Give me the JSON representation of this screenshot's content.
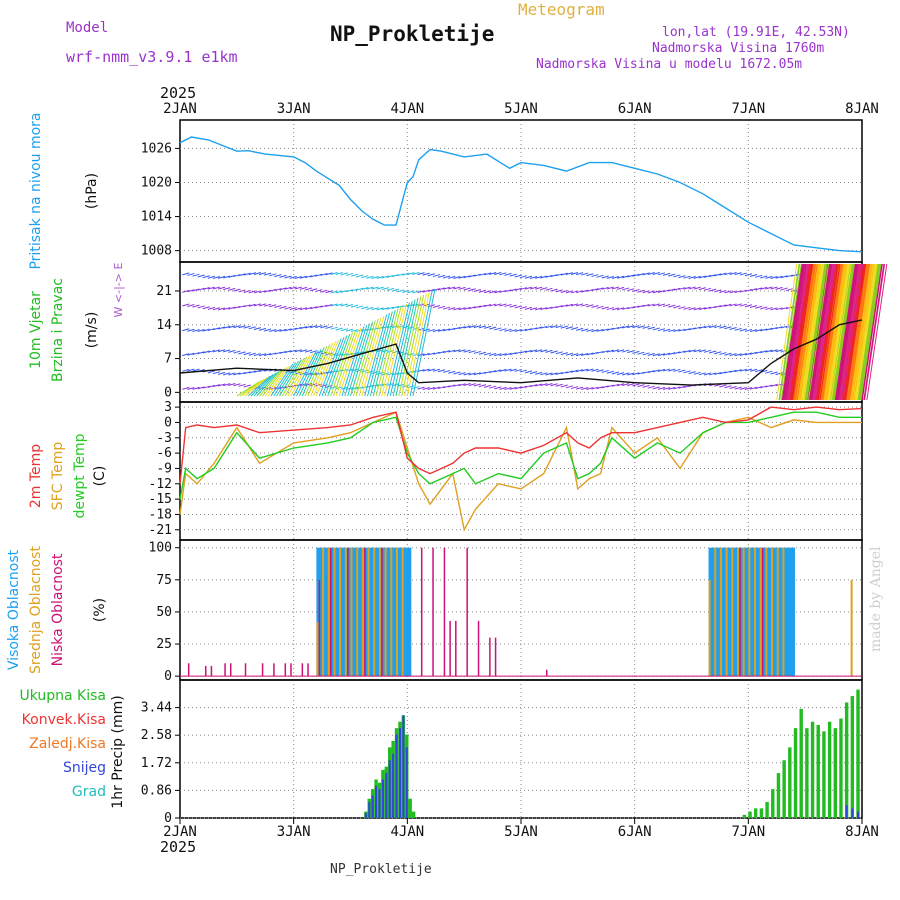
{
  "header": {
    "model_label": "Model",
    "model_name": "wrf-nmm_v3.9.1 e1km",
    "product": "Meteogram",
    "station": "NP_Prokletije",
    "coords": "lon,lat (19.91E, 42.53N)",
    "elevation": "Nadmorska Visina 1760m",
    "model_elevation": "Nadmorska Visina u modelu 1672.05m",
    "footer_station": "NP_Prokletije",
    "watermark": "made by Angel"
  },
  "colors": {
    "pressure": "#1ea0ef",
    "wind_label": "#22bb22",
    "wind_dir_label": "#aa55cc",
    "temp2m": "#ee3333",
    "sfc_temp": "#e0a020",
    "dewpt": "#22cc22",
    "high_cloud": "#1ea0ef",
    "mid_cloud": "#e0a020",
    "low_cloud": "#cc1177",
    "total_precip": "#22bb22",
    "conv_precip": "#ee3333",
    "frz_precip": "#ee7722",
    "snow": "#3344dd",
    "graupel": "#22bbbb",
    "header_purple": "#9933cc",
    "header_orange": "#e0b040"
  },
  "time_axis": {
    "year_top": "2025",
    "year_bottom": "2025",
    "labels": [
      "2JAN",
      "3JAN",
      "4JAN",
      "5JAN",
      "6JAN",
      "7JAN",
      "8JAN"
    ]
  },
  "chart_data": [
    {
      "type": "line",
      "name": "pressure",
      "label": "Pritisak na nivou mora",
      "ylabel": "(hPa)",
      "yticks": [
        1008,
        1014,
        1020,
        1026
      ],
      "ylim": [
        1006,
        1031
      ],
      "x": [
        0,
        0.1,
        0.25,
        0.5,
        0.6,
        0.75,
        1.0,
        1.1,
        1.2,
        1.4,
        1.5,
        1.6,
        1.7,
        1.8,
        1.9,
        2.0,
        2.05,
        2.1,
        2.2,
        2.3,
        2.5,
        2.7,
        2.9,
        3.0,
        3.2,
        3.4,
        3.6,
        3.8,
        4.0,
        4.2,
        4.4,
        4.6,
        4.8,
        5.0,
        5.2,
        5.4,
        5.6,
        5.8,
        6.0
      ],
      "series": [
        {
          "values": [
            1027,
            1028,
            1027.5,
            1025.5,
            1025.6,
            1025,
            1024.5,
            1023.5,
            1022,
            1019.5,
            1017,
            1015,
            1013.5,
            1012.5,
            1012.5,
            1020,
            1021,
            1024,
            1025.8,
            1025.5,
            1024.5,
            1025,
            1022.5,
            1023.5,
            1023,
            1022,
            1023.5,
            1023.5,
            1022.5,
            1021.5,
            1020,
            1018,
            1015.5,
            1013,
            1011,
            1009,
            1008.5,
            1008,
            1007.8
          ]
        }
      ]
    },
    {
      "type": "line",
      "name": "wind",
      "label": "10m Vjetar Brzina i Pravac",
      "ylabel": "(m/s)",
      "direction_legend": "W <-|-> E",
      "yticks": [
        0,
        7,
        14,
        21
      ],
      "ylim": [
        -2,
        27
      ],
      "x": [
        0,
        0.5,
        1.0,
        1.3,
        1.6,
        1.9,
        2.0,
        2.1,
        2.5,
        3.0,
        3.5,
        4.0,
        4.5,
        5.0,
        5.2,
        5.4,
        5.6,
        5.8,
        6.0
      ],
      "series": [
        {
          "name": "speed",
          "values": [
            4,
            5,
            4.5,
            6,
            8,
            10,
            4,
            2,
            2.5,
            2,
            3,
            2,
            1.5,
            2,
            6,
            9,
            11,
            14,
            15
          ]
        }
      ]
    },
    {
      "type": "line",
      "name": "temperature",
      "label_2m": "2m Temp",
      "label_sfc": "SFC Temp",
      "label_dewpt": "dewpt Temp",
      "ylabel": "(C)",
      "yticks": [
        3,
        0,
        -3,
        -6,
        -9,
        -12,
        -15,
        -18,
        -21
      ],
      "ylim": [
        -23,
        4
      ],
      "x": [
        0,
        0.05,
        0.15,
        0.3,
        0.5,
        0.7,
        1.0,
        1.3,
        1.5,
        1.7,
        1.9,
        2.0,
        2.1,
        2.2,
        2.4,
        2.5,
        2.6,
        2.8,
        3.0,
        3.2,
        3.4,
        3.5,
        3.6,
        3.7,
        3.8,
        4.0,
        4.2,
        4.4,
        4.6,
        4.8,
        5.0,
        5.2,
        5.4,
        5.6,
        5.8,
        6.0
      ],
      "series": [
        {
          "name": "2m Temp",
          "values": [
            -12,
            -1,
            -0.5,
            -1,
            -0.5,
            -2,
            -1.5,
            -1,
            -0.5,
            1,
            2,
            -7,
            -9,
            -10,
            -8,
            -6,
            -5,
            -5,
            -6,
            -4.5,
            -2,
            -4,
            -5,
            -3,
            -2,
            -2,
            -1,
            0,
            1,
            0,
            0.5,
            3,
            2.5,
            3,
            2.5,
            2.7
          ]
        },
        {
          "name": "SFC Temp",
          "values": [
            -18,
            -10,
            -12,
            -8,
            -1,
            -8,
            -4,
            -3,
            -2,
            0,
            2,
            -5,
            -12,
            -16,
            -10,
            -21,
            -17,
            -12,
            -13,
            -10,
            -1,
            -13,
            -11,
            -10,
            -1,
            -6,
            -3,
            -9,
            -2,
            0,
            1,
            -1,
            0.5,
            0,
            0,
            0
          ]
        },
        {
          "name": "dewpt Temp",
          "values": [
            -15,
            -9,
            -11,
            -9,
            -2,
            -7,
            -5,
            -4,
            -3,
            0,
            1,
            -6,
            -10,
            -12,
            -10,
            -9,
            -12,
            -10,
            -11,
            -6,
            -4,
            -11,
            -10,
            -8,
            -3,
            -7,
            -4,
            -6,
            -2,
            0,
            0,
            1,
            2,
            2,
            1,
            1
          ]
        }
      ]
    },
    {
      "type": "bar",
      "name": "clouds",
      "label_high": "Visoka Oblacnost",
      "label_mid": "Srednja Oblacnost",
      "label_low": "Niska Oblacnost",
      "ylabel": "(%)",
      "yticks": [
        0,
        25,
        50,
        75,
        100
      ],
      "ylim": [
        -3,
        106
      ],
      "high_cloud": {
        "start": 1.2,
        "end": 2.0,
        "value": 100
      },
      "high_cloud_2": {
        "start": 4.65,
        "end": 5.4,
        "value": 100
      },
      "mid_cloud_spikes": [
        [
          1.2,
          42
        ],
        [
          1.25,
          100
        ],
        [
          1.3,
          100
        ],
        [
          1.35,
          100
        ],
        [
          1.4,
          100
        ],
        [
          1.45,
          100
        ],
        [
          1.5,
          100
        ],
        [
          1.55,
          100
        ],
        [
          1.6,
          100
        ],
        [
          1.65,
          100
        ],
        [
          1.7,
          100
        ],
        [
          1.75,
          100
        ],
        [
          1.8,
          100
        ],
        [
          1.85,
          100
        ],
        [
          1.9,
          100
        ],
        [
          1.95,
          100
        ],
        [
          4.65,
          75
        ],
        [
          4.7,
          100
        ],
        [
          4.75,
          100
        ],
        [
          4.8,
          100
        ],
        [
          4.85,
          100
        ],
        [
          4.9,
          100
        ],
        [
          4.95,
          100
        ],
        [
          5.0,
          100
        ],
        [
          5.05,
          100
        ],
        [
          5.1,
          100
        ],
        [
          5.15,
          100
        ],
        [
          5.2,
          100
        ],
        [
          5.25,
          100
        ],
        [
          5.3,
          100
        ],
        [
          5.9,
          75
        ]
      ],
      "low_cloud_spikes": [
        [
          0.05,
          10
        ],
        [
          0.2,
          8
        ],
        [
          0.25,
          8
        ],
        [
          0.37,
          10
        ],
        [
          0.42,
          10
        ],
        [
          0.55,
          10
        ],
        [
          0.7,
          10
        ],
        [
          0.8,
          10
        ],
        [
          0.9,
          10
        ],
        [
          0.95,
          10
        ],
        [
          1.05,
          10
        ],
        [
          1.1,
          10
        ],
        [
          1.2,
          75
        ],
        [
          1.3,
          100
        ],
        [
          1.45,
          100
        ],
        [
          1.6,
          100
        ],
        [
          1.75,
          100
        ],
        [
          2.1,
          100
        ],
        [
          2.2,
          100
        ],
        [
          2.3,
          100
        ],
        [
          2.35,
          43
        ],
        [
          2.4,
          43
        ],
        [
          2.5,
          100
        ],
        [
          2.6,
          43
        ],
        [
          2.7,
          30
        ],
        [
          2.75,
          30
        ],
        [
          3.2,
          5
        ],
        [
          4.9,
          100
        ],
        [
          5.1,
          100
        ]
      ]
    },
    {
      "type": "bar",
      "name": "precipitation",
      "label_total": "Ukupna Kisa",
      "label_conv": "Konvek.Kisa",
      "label_frz": "Zaledj.Kisa",
      "label_snow": "Snijeg",
      "label_graupel": "Grad",
      "ylabel": "1hr Precip (mm)",
      "yticks": [
        0,
        0.86,
        1.72,
        2.58,
        3.44
      ],
      "ylim": [
        0,
        4.3
      ],
      "total_bars": [
        [
          1.62,
          0.2
        ],
        [
          1.65,
          0.6
        ],
        [
          1.68,
          0.9
        ],
        [
          1.71,
          1.2
        ],
        [
          1.74,
          1.1
        ],
        [
          1.77,
          1.5
        ],
        [
          1.8,
          1.6
        ],
        [
          1.83,
          2.2
        ],
        [
          1.86,
          2.4
        ],
        [
          1.89,
          2.8
        ],
        [
          1.92,
          3.0
        ],
        [
          1.95,
          3.2
        ],
        [
          1.98,
          2.6
        ],
        [
          2.01,
          0.6
        ],
        [
          2.04,
          0.2
        ],
        [
          4.95,
          0.1
        ],
        [
          5.0,
          0.2
        ],
        [
          5.05,
          0.3
        ],
        [
          5.1,
          0.3
        ],
        [
          5.15,
          0.5
        ],
        [
          5.2,
          0.9
        ],
        [
          5.25,
          1.4
        ],
        [
          5.3,
          1.8
        ],
        [
          5.35,
          2.2
        ],
        [
          5.4,
          2.8
        ],
        [
          5.45,
          3.4
        ],
        [
          5.5,
          2.8
        ],
        [
          5.55,
          3.0
        ],
        [
          5.6,
          2.9
        ],
        [
          5.65,
          2.7
        ],
        [
          5.7,
          3.0
        ],
        [
          5.75,
          2.8
        ],
        [
          5.8,
          3.1
        ],
        [
          5.85,
          3.6
        ],
        [
          5.9,
          3.8
        ],
        [
          5.95,
          4.0
        ]
      ],
      "snow_bars": [
        [
          1.62,
          0.15
        ],
        [
          1.65,
          0.5
        ],
        [
          1.68,
          0.7
        ],
        [
          1.71,
          1.0
        ],
        [
          1.74,
          0.9
        ],
        [
          1.77,
          1.2
        ],
        [
          1.8,
          1.4
        ],
        [
          1.83,
          1.8
        ],
        [
          1.86,
          2.0
        ],
        [
          1.89,
          2.6
        ],
        [
          1.92,
          2.8
        ],
        [
          1.95,
          3.2
        ],
        [
          1.98,
          2.2
        ],
        [
          5.85,
          0.4
        ],
        [
          5.9,
          0.3
        ],
        [
          5.95,
          0.2
        ]
      ]
    }
  ]
}
